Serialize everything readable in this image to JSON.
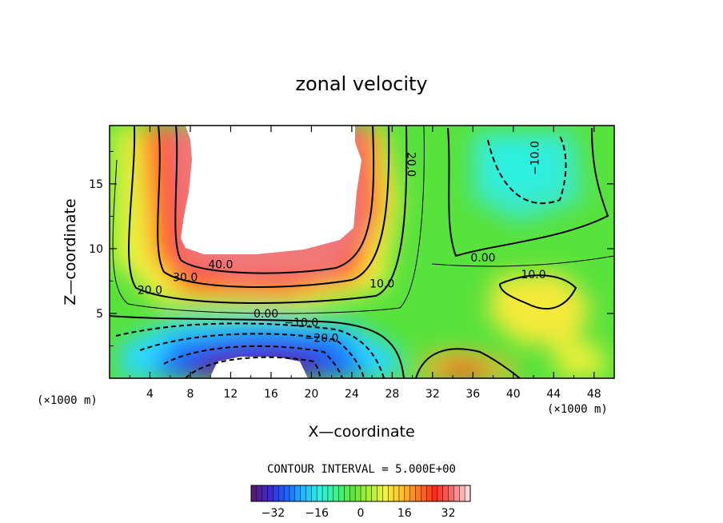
{
  "chart_data": {
    "type": "heatmap",
    "title": "zonal velocity",
    "xlabel": "X—coordinate",
    "ylabel": "Z—coordinate",
    "x_unit_label_left": "(×1000 m)",
    "x_unit_label_right": "(×1000 m)",
    "xlim": [
      0,
      50
    ],
    "ylim": [
      0,
      19.5
    ],
    "x_ticks": [
      "4",
      "8",
      "12",
      "16",
      "20",
      "24",
      "28",
      "32",
      "36",
      "40",
      "44",
      "48"
    ],
    "y_ticks": [
      "5",
      "10",
      "15"
    ],
    "contour_interval_text": "CONTOUR INTERVAL = 5.000E+00",
    "colorbar": {
      "range": [
        -40,
        40
      ],
      "ticks": [
        "−32",
        "−16",
        "0",
        "16",
        "32"
      ],
      "colors": [
        "#5a1a7a",
        "#3a2ad0",
        "#1e64ff",
        "#22b8ff",
        "#2ef0e0",
        "#3cf28c",
        "#5ee43c",
        "#a8f03a",
        "#f2f23a",
        "#ffc030",
        "#ff7a1e",
        "#ff2a1a",
        "#f26a6a",
        "#ffd8d8"
      ]
    },
    "contour_labels": [
      {
        "text": "40.0",
        "x": 11,
        "y": 8.5
      },
      {
        "text": "30.0",
        "x": 7.5,
        "y": 7.5
      },
      {
        "text": "20.0",
        "x": 4,
        "y": 6.5
      },
      {
        "text": "20.0",
        "x": 29.5,
        "y": 16.5
      },
      {
        "text": "10.0",
        "x": 27,
        "y": 7
      },
      {
        "text": "0.00",
        "x": 15.5,
        "y": 4.7
      },
      {
        "text": "−10.0",
        "x": 19,
        "y": 4
      },
      {
        "text": "−20.0",
        "x": 21,
        "y": 2.8
      },
      {
        "text": "0.00",
        "x": 37,
        "y": 9
      },
      {
        "text": "10.0",
        "x": 42,
        "y": 7.7
      },
      {
        "text": "−10.0",
        "x": 42.5,
        "y": 17
      }
    ]
  }
}
